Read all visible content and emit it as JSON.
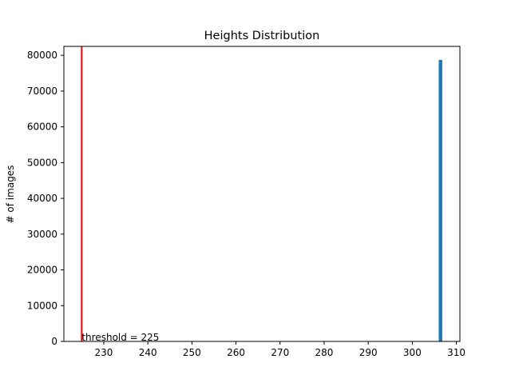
{
  "chart_data": {
    "type": "bar",
    "title": "Heights Distribution",
    "xlabel": "",
    "ylabel": "# of images",
    "xlim": [
      220.95,
      310.8
    ],
    "ylim": [
      0,
      82500
    ],
    "x_ticks": [
      230,
      240,
      250,
      260,
      270,
      280,
      290,
      300,
      310
    ],
    "y_ticks": [
      0,
      10000,
      20000,
      30000,
      40000,
      50000,
      60000,
      70000,
      80000
    ],
    "bars": [
      {
        "x_start": 306.0,
        "x_end": 306.8,
        "value": 78700
      }
    ],
    "bar_color": "#1f77b4",
    "threshold": {
      "value": 225,
      "label": "threshold = 225",
      "color": "#ff0000"
    },
    "grid": false,
    "legend": "none"
  }
}
